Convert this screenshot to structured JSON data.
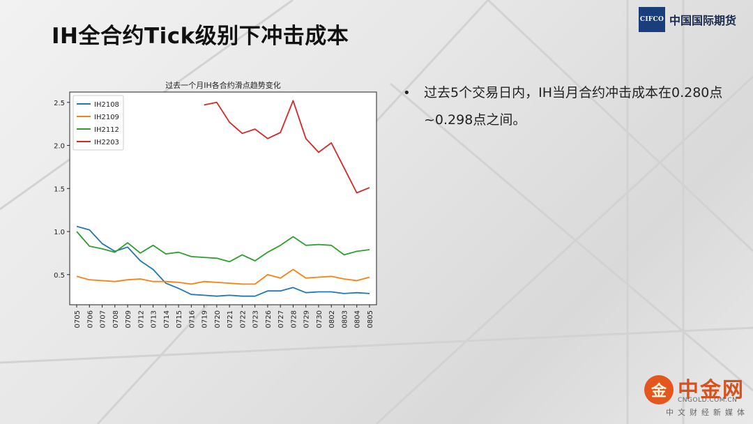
{
  "slide": {
    "title": "IH全合约Tick级别下冲击成本",
    "bullet_marker": "•",
    "bullet_text": "过去5个交易日内，IH当月合约冲击成本在0.280点~0.298点之间。"
  },
  "logo": {
    "box_text": "CIFCO",
    "name": "中国国际期货",
    "box_color": "#1a3d7c"
  },
  "watermark": {
    "mark": "金",
    "name": "中金网",
    "domain": "CNGOLD.COM.CN",
    "sub": "中文财经新媒体"
  },
  "chart_data": {
    "type": "line",
    "title": "过去一个月IH各合约滑点趋势变化",
    "xlabel": "",
    "ylabel": "",
    "categories": [
      "0705",
      "0706",
      "0707",
      "0708",
      "0709",
      "0712",
      "0713",
      "0714",
      "0715",
      "0716",
      "0719",
      "0720",
      "0721",
      "0722",
      "0723",
      "0726",
      "0727",
      "0728",
      "0729",
      "0730",
      "0802",
      "0803",
      "0804",
      "0805"
    ],
    "yticks": [
      0.5,
      1.0,
      1.5,
      2.0,
      2.5
    ],
    "ytick_labels": [
      "0.5",
      "1.0",
      "1.5",
      "2.0",
      "2.5"
    ],
    "ylim": [
      0.15,
      2.62
    ],
    "grid": false,
    "legend": "top-left",
    "series": [
      {
        "name": "IH2108",
        "color": "#1f77b4",
        "values": [
          1.06,
          1.02,
          0.86,
          0.77,
          0.82,
          0.66,
          0.56,
          0.4,
          0.34,
          0.27,
          0.26,
          0.25,
          0.26,
          0.25,
          0.25,
          0.31,
          0.31,
          0.35,
          0.29,
          0.3,
          0.3,
          0.28,
          0.29,
          0.28
        ]
      },
      {
        "name": "IH2109",
        "color": "#ff7f0e",
        "values": [
          0.48,
          0.44,
          0.43,
          0.42,
          0.44,
          0.45,
          0.42,
          0.42,
          0.41,
          0.39,
          0.42,
          0.41,
          0.4,
          0.39,
          0.39,
          0.5,
          0.46,
          0.56,
          0.46,
          0.47,
          0.48,
          0.45,
          0.43,
          0.47
        ]
      },
      {
        "name": "IH2112",
        "color": "#2ca02c",
        "values": [
          1.0,
          0.83,
          0.8,
          0.76,
          0.87,
          0.75,
          0.84,
          0.74,
          0.76,
          0.71,
          0.7,
          0.69,
          0.65,
          0.73,
          0.66,
          0.76,
          0.84,
          0.94,
          0.84,
          0.85,
          0.84,
          0.73,
          0.77,
          0.79
        ]
      },
      {
        "name": "IH2203",
        "color": "#d62728",
        "values": [
          null,
          null,
          null,
          null,
          null,
          null,
          null,
          null,
          null,
          null,
          2.47,
          2.5,
          2.27,
          2.14,
          2.19,
          2.08,
          2.15,
          2.52,
          2.08,
          1.92,
          2.03,
          1.74,
          1.45,
          1.51
        ]
      }
    ]
  }
}
